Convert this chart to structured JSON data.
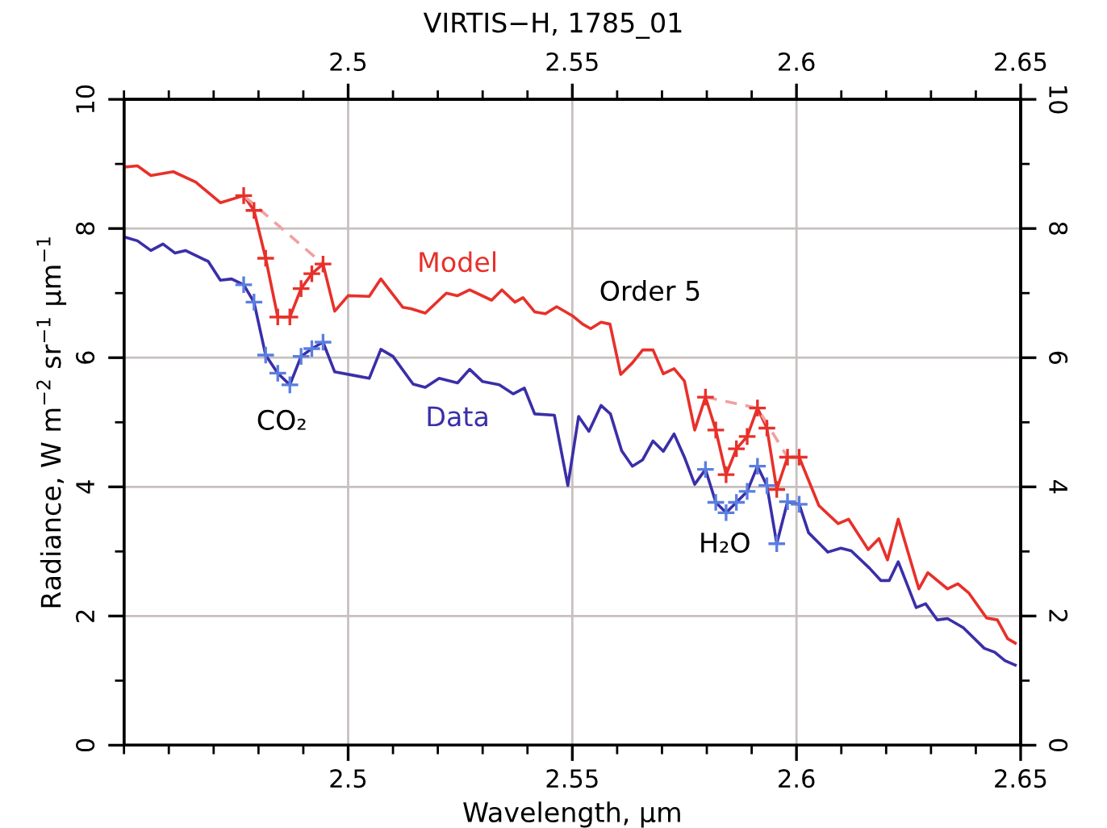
{
  "chart_data": {
    "type": "line",
    "title": "VIRTIS−H, 1785_01",
    "xlabel": "Wavelength, μm",
    "ylabel": "Radiance, W m$^{−2}$ sr$^{−1}$ μm$^{−1}$",
    "xlim": [
      2.45,
      2.65
    ],
    "x2lim": [
      2.45,
      2.65
    ],
    "ylim": [
      0,
      10
    ],
    "y2lim": [
      0,
      10
    ],
    "xticks": [
      {
        "value": 2.45,
        "label": null
      },
      {
        "value": 2.46,
        "label": null
      },
      {
        "value": 2.47,
        "label": null
      },
      {
        "value": 2.48,
        "label": null
      },
      {
        "value": 2.49,
        "label": null
      },
      2.5,
      {
        "value": 2.51,
        "label": null
      },
      {
        "value": 2.52,
        "label": null
      },
      {
        "value": 2.53,
        "label": null
      },
      {
        "value": 2.54,
        "label": null
      },
      2.55,
      {
        "value": 2.56,
        "label": null
      },
      {
        "value": 2.57,
        "label": null
      },
      {
        "value": 2.58,
        "label": null
      },
      {
        "value": 2.59,
        "label": null
      },
      2.6,
      {
        "value": 2.61,
        "label": null
      },
      {
        "value": 2.62,
        "label": null
      },
      {
        "value": 2.63,
        "label": null
      },
      {
        "value": 2.64,
        "label": null
      },
      2.65
    ],
    "x2ticks": [
      {
        "value": 2.45,
        "label": null
      },
      {
        "value": 2.46,
        "label": null
      },
      {
        "value": 2.47,
        "label": null
      },
      {
        "value": 2.48,
        "label": null
      },
      {
        "value": 2.49,
        "label": null
      },
      2.5,
      {
        "value": 2.51,
        "label": null
      },
      {
        "value": 2.52,
        "label": null
      },
      {
        "value": 2.53,
        "label": null
      },
      {
        "value": 2.54,
        "label": null
      },
      2.55,
      {
        "value": 2.56,
        "label": null
      },
      {
        "value": 2.57,
        "label": null
      },
      {
        "value": 2.58,
        "label": null
      },
      {
        "value": 2.59,
        "label": null
      },
      2.6,
      {
        "value": 2.61,
        "label": null
      },
      {
        "value": 2.62,
        "label": null
      },
      {
        "value": 2.63,
        "label": null
      },
      {
        "value": 2.64,
        "label": null
      },
      2.65
    ],
    "yticks": [
      0,
      {
        "value": 1,
        "label": null
      },
      2,
      {
        "value": 3,
        "label": null
      },
      4,
      {
        "value": 5,
        "label": null
      },
      6,
      {
        "value": 7,
        "label": null
      },
      8,
      {
        "value": 9,
        "label": null
      },
      10
    ],
    "y2ticks": [
      0,
      {
        "value": 1,
        "label": null
      },
      2,
      {
        "value": 3,
        "label": null
      },
      4,
      {
        "value": 5,
        "label": null
      },
      6,
      {
        "value": 7,
        "label": null
      },
      8,
      {
        "value": 9,
        "label": null
      },
      10
    ],
    "grid": true,
    "legend": false,
    "line_style": "solid",
    "marker": "none",
    "series": [
      {
        "name": "Model",
        "color": "#e8302a",
        "x": [
          2.45,
          2.453,
          2.456,
          2.461,
          2.466,
          2.4715,
          2.4767,
          2.479,
          2.4816,
          2.4843,
          2.487,
          2.4895,
          2.4919,
          2.4944,
          2.497,
          2.5,
          2.5047,
          2.5073,
          2.5122,
          2.514,
          2.5172,
          2.5219,
          2.5244,
          2.5271,
          2.532,
          2.5343,
          2.5372,
          2.539,
          2.5416,
          2.544,
          2.5465,
          2.55,
          2.5523,
          2.5541,
          2.5564,
          2.5584,
          2.5608,
          2.5634,
          2.5657,
          2.568,
          2.5703,
          2.5727,
          2.575,
          2.5773,
          2.5797,
          2.582,
          2.5843,
          2.5866,
          2.589,
          2.5913,
          2.5934,
          2.5956,
          2.598,
          2.6006,
          2.605,
          2.6093,
          2.6116,
          2.616,
          2.6184,
          2.6203,
          2.6227,
          2.6273,
          2.6293,
          2.6337,
          2.636,
          2.6384,
          2.6424,
          2.6448,
          2.6471,
          2.6488
        ],
        "values": [
          8.95,
          8.97,
          8.82,
          8.88,
          8.72,
          8.4,
          8.51,
          8.28,
          7.54,
          6.63,
          6.63,
          7.07,
          7.3,
          7.45,
          6.72,
          6.96,
          6.95,
          7.22,
          6.78,
          6.76,
          6.69,
          7.0,
          6.96,
          7.05,
          6.89,
          7.05,
          6.86,
          6.93,
          6.71,
          6.68,
          6.79,
          6.65,
          6.52,
          6.45,
          6.55,
          6.52,
          5.74,
          5.92,
          6.12,
          6.12,
          5.75,
          5.83,
          5.64,
          4.88,
          5.39,
          4.88,
          4.19,
          4.59,
          4.78,
          5.22,
          4.91,
          3.96,
          4.46,
          4.46,
          3.71,
          3.43,
          3.5,
          3.03,
          3.2,
          2.87,
          3.5,
          2.42,
          2.67,
          2.42,
          2.5,
          2.36,
          1.97,
          1.94,
          1.65,
          1.58
        ]
      },
      {
        "name": "Data",
        "color": "#3a2fa8",
        "x": [
          2.45,
          2.453,
          2.456,
          2.4587,
          2.4614,
          2.4637,
          2.4688,
          2.4715,
          2.474,
          2.4767,
          2.479,
          2.4816,
          2.4843,
          2.487,
          2.4895,
          2.4919,
          2.4944,
          2.497,
          2.5017,
          2.5047,
          2.5073,
          2.51,
          2.5145,
          2.5172,
          2.5203,
          2.5244,
          2.5271,
          2.53,
          2.5337,
          2.5368,
          2.5393,
          2.5416,
          2.546,
          2.549,
          2.5514,
          2.5537,
          2.5564,
          2.5585,
          2.561,
          2.5634,
          2.5657,
          2.568,
          2.5703,
          2.5727,
          2.575,
          2.5773,
          2.5797,
          2.582,
          2.5843,
          2.5866,
          2.589,
          2.5913,
          2.5934,
          2.5956,
          2.598,
          2.6006,
          2.6027,
          2.607,
          2.6099,
          2.6122,
          2.6163,
          2.6188,
          2.6207,
          2.6227,
          2.6267,
          2.6288,
          2.6314,
          2.6337,
          2.6372,
          2.6419,
          2.6442,
          2.6465,
          2.6488
        ],
        "values": [
          7.87,
          7.81,
          7.66,
          7.76,
          7.62,
          7.66,
          7.49,
          7.2,
          7.22,
          7.13,
          6.86,
          6.04,
          5.76,
          5.58,
          6.02,
          6.14,
          6.24,
          5.78,
          5.72,
          5.68,
          6.13,
          6.02,
          5.59,
          5.54,
          5.68,
          5.61,
          5.82,
          5.63,
          5.58,
          5.44,
          5.53,
          5.13,
          5.11,
          4.02,
          5.09,
          4.86,
          5.26,
          5.13,
          4.56,
          4.32,
          4.42,
          4.71,
          4.55,
          4.82,
          4.46,
          4.04,
          4.27,
          3.76,
          3.6,
          3.76,
          3.93,
          4.32,
          4.02,
          3.12,
          3.77,
          3.73,
          3.29,
          2.99,
          3.05,
          3.01,
          2.74,
          2.55,
          2.55,
          2.84,
          2.13,
          2.19,
          1.94,
          1.96,
          1.82,
          1.5,
          1.44,
          1.31,
          1.24
        ]
      },
      {
        "type": "scatter",
        "color": "#e8302a",
        "marker": "cross",
        "x": [
          2.4767,
          2.479,
          2.4816,
          2.4843,
          2.487,
          2.4895,
          2.4919,
          2.4944,
          2.5797,
          2.582,
          2.5843,
          2.5866,
          2.589,
          2.5913,
          2.5934,
          2.5956,
          2.598,
          2.6006
        ],
        "values": [
          8.51,
          8.28,
          7.54,
          6.63,
          6.63,
          7.07,
          7.3,
          7.45,
          5.39,
          4.88,
          4.19,
          4.59,
          4.78,
          5.22,
          4.91,
          3.96,
          4.46,
          4.46
        ]
      },
      {
        "type": "scatter",
        "color": "#5a7ee0",
        "marker": "cross",
        "x": [
          2.4767,
          2.479,
          2.4816,
          2.4843,
          2.487,
          2.4895,
          2.4919,
          2.4944,
          2.5797,
          2.582,
          2.5843,
          2.5866,
          2.589,
          2.5913,
          2.5934,
          2.5956,
          2.598,
          2.6006
        ],
        "values": [
          7.13,
          6.86,
          6.04,
          5.76,
          5.58,
          6.02,
          6.14,
          6.24,
          4.27,
          3.76,
          3.6,
          3.76,
          3.93,
          4.32,
          4.02,
          3.12,
          3.77,
          3.73
        ]
      },
      {
        "type": "line",
        "color": "#f0a0a0",
        "line_style": "dashed",
        "x": [
          2.4767,
          2.4944
        ],
        "values": [
          8.51,
          7.45
        ]
      },
      {
        "type": "line",
        "color": "#f0a0a0",
        "line_style": "dashed",
        "x": [
          2.5797,
          2.5913,
          2.598
        ],
        "values": [
          5.39,
          5.22,
          4.46
        ]
      }
    ],
    "annotations": [
      "Order 5",
      "CO₂",
      "H₂O"
    ]
  }
}
